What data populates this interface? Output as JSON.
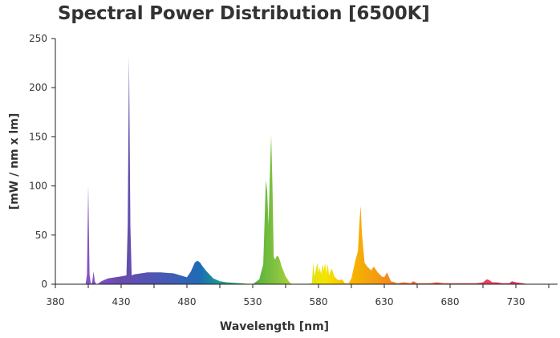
{
  "chart_data": {
    "type": "area",
    "title": "Spectral Power Distribution [6500K]",
    "xlabel": "Wavelength [nm]",
    "ylabel": "[mW / nm x lm]",
    "xlim": [
      380,
      780
    ],
    "ylim": [
      0,
      250
    ],
    "x_ticks": [
      380,
      430,
      480,
      530,
      580,
      630,
      680,
      730
    ],
    "y_ticks": [
      0,
      50,
      100,
      150,
      200,
      250
    ],
    "grid": false,
    "legend": "none",
    "series": [
      {
        "x": [
          400,
          403,
          404,
          405,
          406,
          407,
          408,
          409,
          410,
          411,
          412,
          415,
          420,
          430,
          434,
          435,
          436,
          437,
          438,
          440,
          450,
          460,
          470,
          480,
          483,
          486,
          488,
          490,
          492,
          495,
          500,
          505,
          510,
          520,
          530,
          535,
          538,
          540,
          541,
          542,
          543,
          544,
          545,
          546,
          547,
          548,
          549,
          550,
          552,
          555,
          558,
          560,
          570,
          575,
          576,
          577,
          579,
          580,
          581,
          582,
          583,
          584,
          585,
          586,
          587,
          588,
          590,
          592,
          594,
          596,
          598,
          600,
          603,
          605,
          608,
          610,
          611,
          612,
          613,
          614,
          615,
          617,
          620,
          622,
          625,
          628,
          630,
          632,
          635,
          640,
          645,
          650,
          652,
          655,
          660,
          665,
          670,
          675,
          680,
          685,
          690,
          695,
          700,
          705,
          708,
          710,
          712,
          715,
          720,
          725,
          727,
          730,
          735,
          740
        ],
        "y": [
          0,
          0,
          10,
          101,
          10,
          0,
          2,
          13,
          3,
          0,
          0,
          3,
          6,
          8,
          9,
          60,
          232,
          60,
          9,
          10,
          12,
          12,
          11,
          7,
          13,
          22,
          24,
          22,
          18,
          13,
          6,
          3,
          2,
          1,
          0,
          5,
          20,
          106,
          95,
          60,
          110,
          152,
          100,
          28,
          25,
          28,
          29,
          27,
          18,
          8,
          2,
          0,
          0,
          1,
          22,
          8,
          22,
          12,
          17,
          10,
          20,
          14,
          22,
          11,
          21,
          9,
          16,
          8,
          5,
          4,
          5,
          1,
          1,
          6,
          24,
          34,
          60,
          80,
          52,
          36,
          22,
          18,
          14,
          18,
          12,
          8,
          7,
          12,
          3,
          1,
          2,
          1,
          3,
          1,
          1,
          1,
          2,
          1,
          1,
          1,
          1,
          1,
          1,
          2,
          5,
          4,
          2,
          2,
          1,
          1,
          3,
          2,
          1,
          0
        ],
        "gradient": [
          {
            "wl": 400,
            "color": "#8a55c8"
          },
          {
            "wl": 430,
            "color": "#6a4aae"
          },
          {
            "wl": 470,
            "color": "#3d5db5"
          },
          {
            "wl": 490,
            "color": "#1e6cb5"
          },
          {
            "wl": 505,
            "color": "#1a9a8a"
          },
          {
            "wl": 530,
            "color": "#4fae3c"
          },
          {
            "wl": 550,
            "color": "#8cc63f"
          },
          {
            "wl": 570,
            "color": "#d8e020"
          },
          {
            "wl": 585,
            "color": "#f5e400"
          },
          {
            "wl": 605,
            "color": "#f7b500"
          },
          {
            "wl": 625,
            "color": "#f39a12"
          },
          {
            "wl": 650,
            "color": "#f06a3a"
          },
          {
            "wl": 700,
            "color": "#e8455a"
          },
          {
            "wl": 740,
            "color": "#e03060"
          }
        ]
      }
    ]
  }
}
